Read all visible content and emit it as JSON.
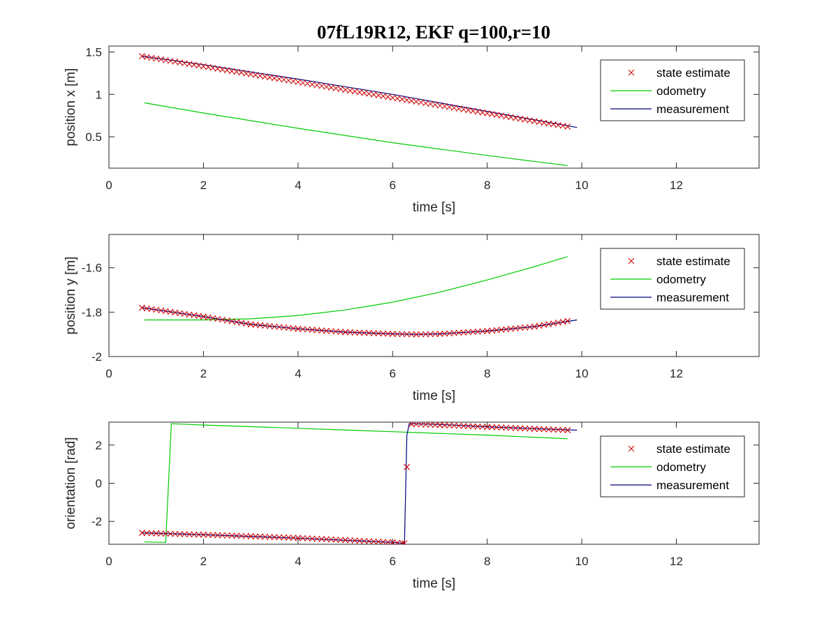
{
  "figure": {
    "title": "07fL19R12, EKF q=100,r=10"
  },
  "colors": {
    "state_estimate": "#cc0000",
    "odometry": "#00cc00",
    "measurement": "#000080",
    "axis": "#262626"
  },
  "chart_data": [
    {
      "type": "line",
      "xlabel": "time [s]",
      "ylabel": "position x [m]",
      "xlim": [
        0,
        13.75
      ],
      "ylim": [
        0.13,
        1.57
      ],
      "xticks": [
        0,
        2,
        4,
        6,
        8,
        10,
        12
      ],
      "yticks": [
        0.5,
        1,
        1.5
      ],
      "legend_position": "top-right",
      "series": [
        {
          "name": "state estimate",
          "style": "marker-x",
          "x": [
            0.7,
            9.7
          ],
          "y": [
            1.45,
            0.62
          ],
          "count": 91
        },
        {
          "name": "odometry",
          "style": "line",
          "x": [
            0.75,
            2,
            4,
            6,
            8,
            9.7
          ],
          "y": [
            0.9,
            0.78,
            0.6,
            0.43,
            0.28,
            0.16
          ]
        },
        {
          "name": "measurement",
          "style": "line",
          "x": [
            0.7,
            2,
            4,
            6,
            8,
            9.9
          ],
          "y": [
            1.45,
            1.35,
            1.18,
            1.0,
            0.8,
            0.61
          ]
        }
      ]
    },
    {
      "type": "line",
      "xlabel": "time [s]",
      "ylabel": "position y [m]",
      "xlim": [
        0,
        13.75
      ],
      "ylim": [
        -2.0,
        -1.45
      ],
      "xticks": [
        0,
        2,
        4,
        6,
        8,
        10,
        12
      ],
      "yticks": [
        -2,
        -1.8,
        -1.6
      ],
      "legend_position": "top-right",
      "series": [
        {
          "name": "state estimate",
          "style": "marker-x",
          "x": [
            0.7,
            2,
            3,
            4,
            5,
            6,
            6.5,
            7,
            8,
            9,
            9.7
          ],
          "y": [
            -1.78,
            -1.82,
            -1.855,
            -1.875,
            -1.89,
            -1.898,
            -1.9,
            -1.898,
            -1.885,
            -1.865,
            -1.84
          ],
          "count": 91
        },
        {
          "name": "odometry",
          "style": "line",
          "x": [
            0.75,
            2,
            3,
            4,
            5,
            6,
            7,
            8,
            9,
            9.7
          ],
          "y": [
            -1.835,
            -1.835,
            -1.83,
            -1.815,
            -1.79,
            -1.755,
            -1.71,
            -1.655,
            -1.595,
            -1.55
          ]
        },
        {
          "name": "measurement",
          "style": "line",
          "x": [
            0.7,
            2,
            3,
            4,
            5,
            6,
            6.5,
            7,
            8,
            9,
            9.9
          ],
          "y": [
            -1.78,
            -1.82,
            -1.855,
            -1.875,
            -1.89,
            -1.898,
            -1.9,
            -1.898,
            -1.885,
            -1.865,
            -1.835
          ]
        }
      ]
    },
    {
      "type": "line",
      "xlabel": "time [s]",
      "ylabel": "orientation [rad]",
      "xlim": [
        0,
        13.75
      ],
      "ylim": [
        -3.2,
        3.2
      ],
      "xticks": [
        0,
        2,
        4,
        6,
        8,
        10,
        12
      ],
      "yticks": [
        -2,
        0,
        2
      ],
      "legend_position": "top-right",
      "series": [
        {
          "name": "state estimate",
          "style": "marker-x",
          "x": [
            0.7,
            1,
            2,
            3,
            4,
            5,
            6,
            6.25,
            6.3,
            6.4,
            7,
            8,
            9,
            9.7
          ],
          "y": [
            -2.6,
            -2.63,
            -2.7,
            -2.78,
            -2.87,
            -2.98,
            -3.1,
            -3.15,
            0.85,
            3.1,
            3.05,
            2.95,
            2.85,
            2.78
          ],
          "count": 91
        },
        {
          "name": "odometry",
          "style": "line",
          "x": [
            0.75,
            1.2,
            1.32,
            2,
            4,
            6,
            8,
            9.7
          ],
          "y": [
            -3.08,
            -3.1,
            3.12,
            3.05,
            2.88,
            2.7,
            2.52,
            2.33
          ]
        },
        {
          "name": "measurement",
          "style": "line",
          "x": [
            0.7,
            2,
            4,
            6,
            6.25,
            6.27,
            6.3,
            6.35,
            7,
            8,
            9,
            9.9
          ],
          "y": [
            -2.6,
            -2.7,
            -2.88,
            -3.1,
            -3.15,
            -1.0,
            2.5,
            3.12,
            3.08,
            2.96,
            2.86,
            2.78
          ]
        }
      ]
    }
  ]
}
